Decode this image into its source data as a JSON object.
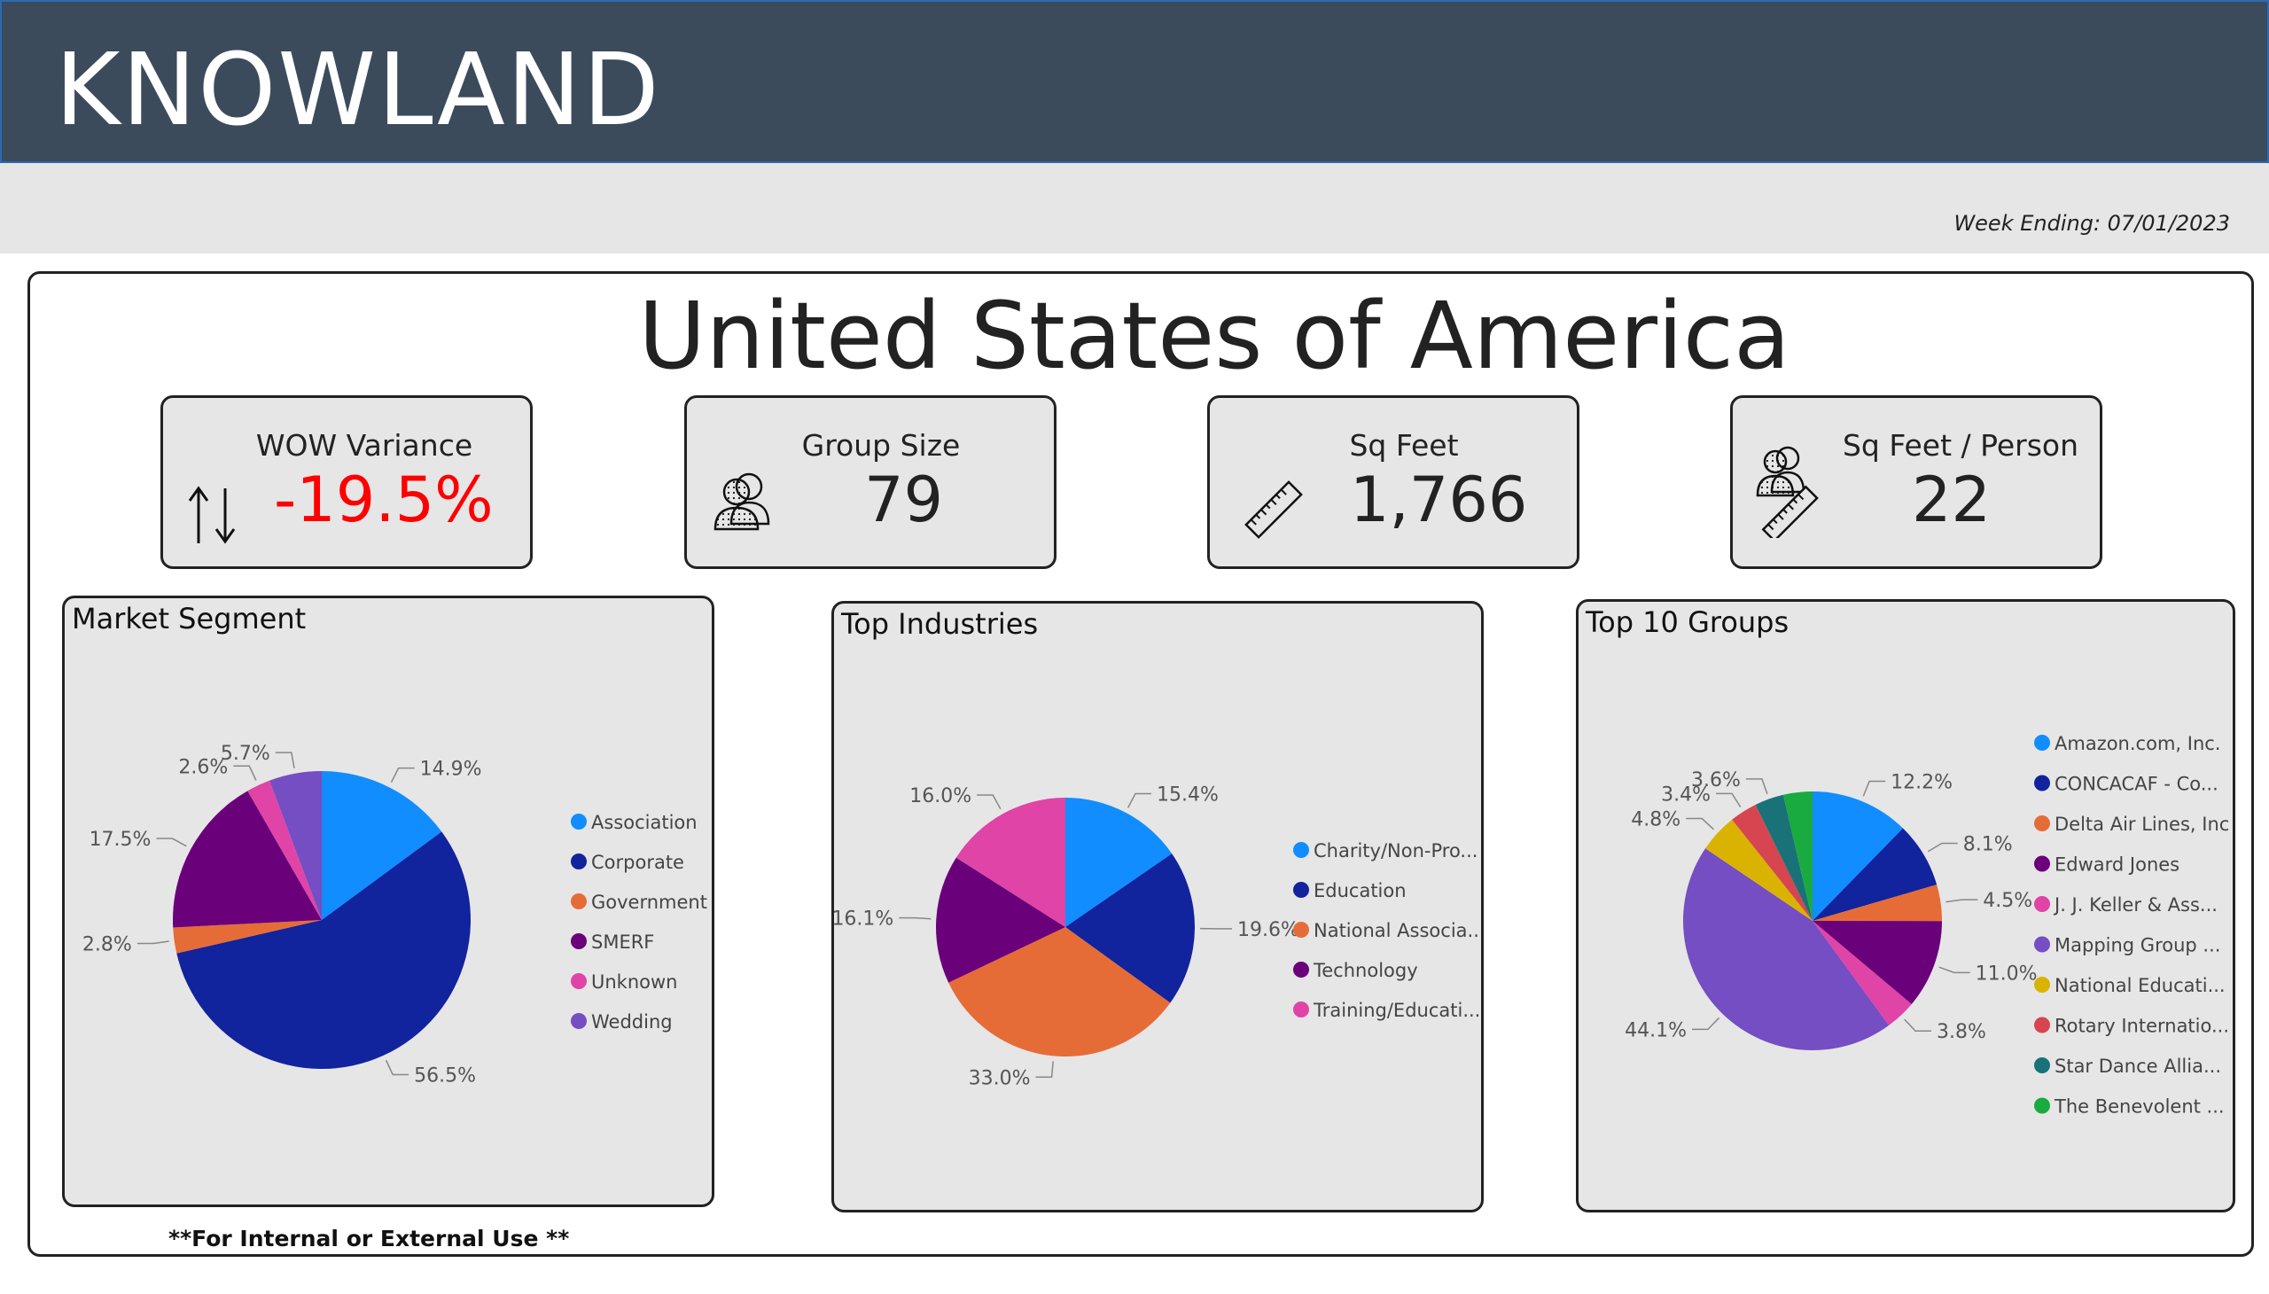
{
  "header": {
    "brand": "KNOWLAND",
    "week_ending": "Week Ending: 07/01/2023"
  },
  "title": "United States of America",
  "kpis": {
    "wow": {
      "label": "WOW Variance",
      "value": "-19.5%",
      "color": "#ff0000",
      "icon": "up-down-arrows-icon"
    },
    "group_size": {
      "label": "Group Size",
      "value": "79",
      "icon": "people-icon"
    },
    "sq_feet": {
      "label": "Sq Feet",
      "value": "1,766",
      "icon": "ruler-icon"
    },
    "sq_feet_person": {
      "label": "Sq Feet / Person",
      "value": "22",
      "icon": "people-ruler-icon"
    }
  },
  "footer": "**For Internal or External Use **",
  "chart_data": [
    {
      "type": "pie",
      "title": "Market Segment",
      "categories": [
        "Association",
        "Corporate",
        "Government",
        "SMERF",
        "Unknown",
        "Wedding"
      ],
      "values": [
        14.9,
        56.5,
        2.8,
        17.5,
        2.6,
        5.7
      ],
      "labels": [
        "14.9%",
        "56.5%",
        "2.8%",
        "17.5%",
        "2.6%",
        "5.7%"
      ],
      "colors": [
        "#118dff",
        "#12239e",
        "#e66c37",
        "#6b007b",
        "#e044a7",
        "#744ec2"
      ],
      "legend": "right"
    },
    {
      "type": "pie",
      "title": "Top Industries",
      "categories": [
        "Charity/Non-Pro...",
        "Education",
        "National Associa...",
        "Technology",
        "Training/Educati..."
      ],
      "values": [
        15.4,
        19.6,
        33.0,
        16.1,
        16.0
      ],
      "labels": [
        "15.4%",
        "19.6%",
        "33.0%",
        "16.1%",
        "16.0%"
      ],
      "colors": [
        "#118dff",
        "#12239e",
        "#e66c37",
        "#6b007b",
        "#e044a7"
      ],
      "legend": "right"
    },
    {
      "type": "pie",
      "title": "Top 10 Groups",
      "categories": [
        "Amazon.com, Inc.",
        "CONCACAF - Co...",
        "Delta Air Lines, Inc",
        "Edward Jones",
        "J. J. Keller & Ass...",
        "Mapping Group ...",
        "National Educati...",
        "Rotary Internatio...",
        "Star Dance Allia...",
        "The Benevolent ..."
      ],
      "values": [
        12.2,
        8.1,
        4.5,
        11.0,
        3.8,
        44.1,
        4.8,
        3.4,
        3.6,
        3.6
      ],
      "labels": [
        "12.2%",
        "8.1%",
        "4.5%",
        "11.0%",
        "3.8%",
        "44.1%",
        "4.8%",
        "3.4%",
        "3.6%",
        ""
      ],
      "colors": [
        "#118dff",
        "#12239e",
        "#e66c37",
        "#6b007b",
        "#e044a7",
        "#744ec2",
        "#d9b300",
        "#d64550",
        "#197278",
        "#1aab40"
      ],
      "legend": "right"
    }
  ]
}
